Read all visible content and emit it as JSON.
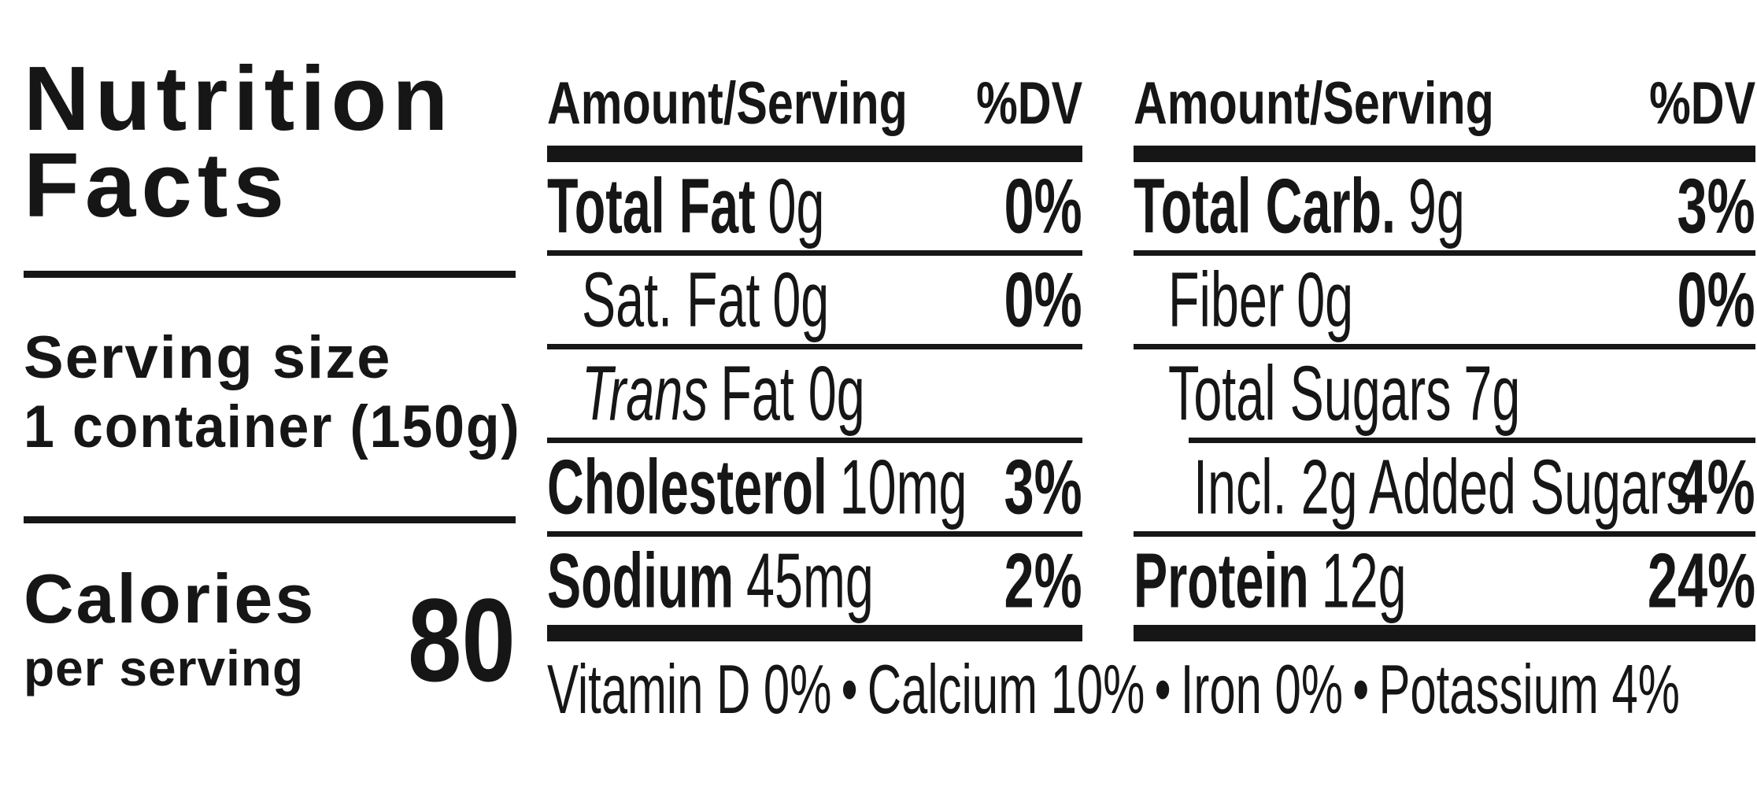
{
  "title": {
    "line1": "Nutrition",
    "line2": "Facts"
  },
  "serving": {
    "label": "Serving size",
    "value": "1 container (150g)"
  },
  "calories": {
    "label": "Calories",
    "sublabel": "per serving",
    "value": "80"
  },
  "columns": [
    {
      "header": {
        "amount": "Amount/Serving",
        "dv": "%DV"
      },
      "rows": [
        {
          "name": "Total Fat",
          "value": "0g",
          "dv": "0%"
        },
        {
          "name": "Sat. Fat",
          "value": "0g",
          "dv": "0%"
        },
        {
          "name": "Trans",
          "value": "Fat 0g",
          "dv": ""
        },
        {
          "name": "Cholesterol",
          "value": "10mg",
          "dv": "3%"
        },
        {
          "name": "Sodium",
          "value": "45mg",
          "dv": "2%"
        }
      ]
    },
    {
      "header": {
        "amount": "Amount/Serving",
        "dv": "%DV"
      },
      "rows": [
        {
          "name": "Total Carb.",
          "value": "9g",
          "dv": "3%"
        },
        {
          "name": "Fiber",
          "value": "0g",
          "dv": "0%"
        },
        {
          "name": "Total Sugars",
          "value": "7g",
          "dv": ""
        },
        {
          "name": "Incl. 2g Added Sugars",
          "value": "",
          "dv": "4%"
        },
        {
          "name": "Protein",
          "value": "12g",
          "dv": "24%"
        }
      ]
    }
  ],
  "micronutrients": {
    "items": [
      "Vitamin D 0%",
      "Calcium 10%",
      "Iron 0%",
      "Potassium 4%"
    ],
    "separator": "•"
  },
  "colors": {
    "ink": "#161616",
    "background": "#ffffff"
  }
}
